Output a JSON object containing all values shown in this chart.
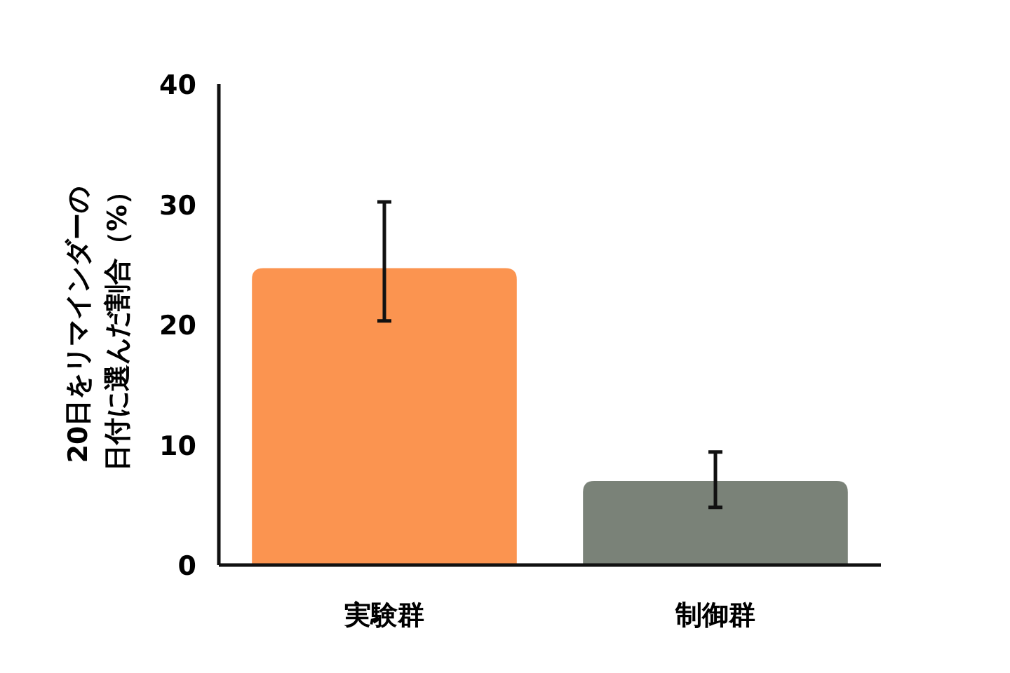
{
  "chart_data": {
    "type": "bar",
    "ylabel": "20日をリマインダーの日付に選んだ割合（%）",
    "categories": [
      "実験群",
      "制御群"
    ],
    "values": [
      24.7,
      7.0
    ],
    "colors": [
      "#fb9450",
      "#7a8278"
    ],
    "errors": [
      [
        20.3,
        30.2
      ],
      [
        4.8,
        9.4
      ]
    ],
    "ylim": [
      0,
      40
    ],
    "yticks": [
      0,
      10,
      20,
      30,
      40
    ],
    "grid": false
  }
}
